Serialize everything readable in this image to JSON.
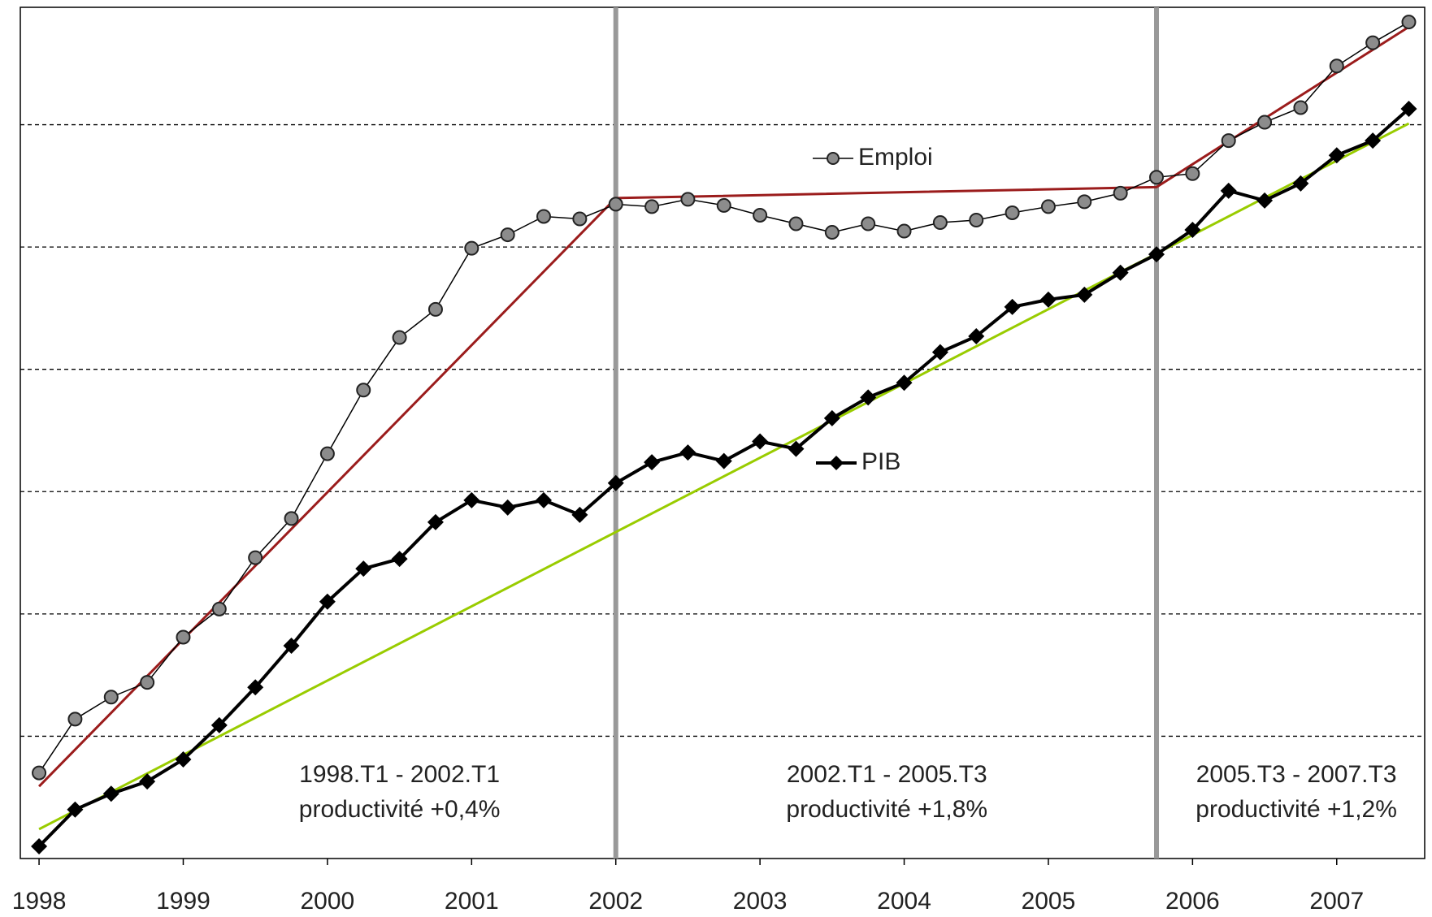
{
  "chart_data": {
    "type": "line",
    "x": [
      1998,
      1998.25,
      1998.5,
      1998.75,
      1999,
      1999.25,
      1999.5,
      1999.75,
      2000,
      2000.25,
      2000.5,
      2000.75,
      2001,
      2001.25,
      2001.5,
      2001.75,
      2002,
      2002.25,
      2002.5,
      2002.75,
      2003,
      2003.25,
      2003.5,
      2003.75,
      2004,
      2004.25,
      2004.5,
      2004.75,
      2005,
      2005.25,
      2005.5,
      2005.75,
      2006,
      2006.25,
      2006.5,
      2006.75,
      2007,
      2007.25,
      2007.5
    ],
    "series": [
      {
        "name": "Emploi",
        "color": "#000000",
        "marker_color": "#8c8c8c",
        "values": [
          0.7,
          1.14,
          1.32,
          1.44,
          1.81,
          2.04,
          2.46,
          2.78,
          3.31,
          3.83,
          4.26,
          4.49,
          4.99,
          5.1,
          5.25,
          5.23,
          5.35,
          5.33,
          5.39,
          5.34,
          5.26,
          5.19,
          5.12,
          5.19,
          5.13,
          5.2,
          5.22,
          5.28,
          5.33,
          5.37,
          5.44,
          5.57,
          5.6,
          5.87,
          6.02,
          6.14,
          6.48,
          6.67,
          6.84
        ]
      },
      {
        "name": "PIB",
        "color": "#000000",
        "marker_color": "#000000",
        "values": [
          0.1,
          0.4,
          0.53,
          0.63,
          0.81,
          1.09,
          1.4,
          1.74,
          2.1,
          2.37,
          2.45,
          2.75,
          2.93,
          2.87,
          2.93,
          2.81,
          3.07,
          3.24,
          3.32,
          3.25,
          3.41,
          3.35,
          3.6,
          3.77,
          3.89,
          4.14,
          4.27,
          4.51,
          4.57,
          4.61,
          4.79,
          4.94,
          5.14,
          5.46,
          5.38,
          5.52,
          5.75,
          5.87,
          6.13
        ]
      }
    ],
    "trend_lines": [
      {
        "color": "#9b1c1c",
        "x": [
          1998,
          2002,
          2005.75,
          2007.5
        ],
        "values": [
          0.59,
          5.4,
          5.49,
          6.8
        ]
      },
      {
        "color": "#99cc00",
        "x": [
          1998,
          2007.5
        ],
        "values": [
          0.24,
          6.01
        ]
      }
    ],
    "period_breaks": [
      2002,
      2005.75
    ],
    "annotations": [
      {
        "x": 2000.5,
        "lines": [
          "1998.T1 - 2002.T1",
          "productivité +0,4%"
        ]
      },
      {
        "x": 2003.88,
        "lines": [
          "2002.T1 - 2005.T3",
          "productivité +1,8%"
        ]
      },
      {
        "x": 2006.72,
        "lines": [
          "2005.T3 - 2007.T3",
          "productivité +1,2%"
        ]
      }
    ],
    "xlim": [
      1997.87,
      2007.61
    ],
    "xticks": [
      1998,
      1999,
      2000,
      2001,
      2002,
      2003,
      2004,
      2005,
      2006,
      2007
    ],
    "ylim": [
      0,
      6.96
    ],
    "yticks": [
      1,
      2,
      3,
      4,
      5,
      6
    ],
    "grid": true
  }
}
